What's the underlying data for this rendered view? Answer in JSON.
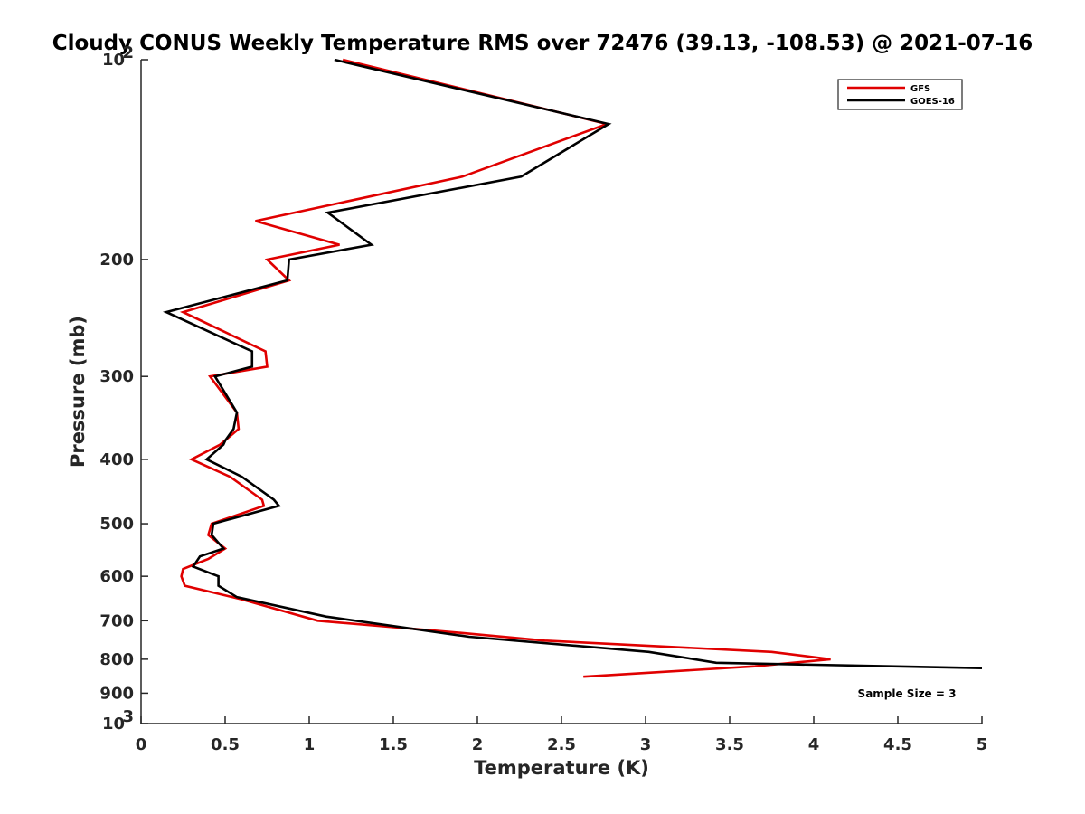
{
  "chart_data": {
    "type": "line",
    "title": "Cloudy CONUS Weekly Temperature RMS over 72476 (39.13, -108.53) @ 2021-07-16",
    "xlabel": "Temperature (K)",
    "ylabel": "Pressure (mb)",
    "xlim": [
      0,
      5
    ],
    "ylim": [
      100,
      1000
    ],
    "y_scale": "log",
    "y_reversed": true,
    "grid": false,
    "legend_position": "top-right",
    "x_ticks": [
      "0",
      "0.5",
      "1",
      "1.5",
      "2",
      "2.5",
      "3",
      "3.5",
      "4",
      "4.5",
      "5"
    ],
    "y_ticks": [
      {
        "value": 100,
        "label": "10",
        "sup": "2"
      },
      {
        "value": 200,
        "label": "200",
        "sup": ""
      },
      {
        "value": 300,
        "label": "300",
        "sup": ""
      },
      {
        "value": 400,
        "label": "400",
        "sup": ""
      },
      {
        "value": 500,
        "label": "500",
        "sup": ""
      },
      {
        "value": 600,
        "label": "600",
        "sup": ""
      },
      {
        "value": 700,
        "label": "700",
        "sup": ""
      },
      {
        "value": 800,
        "label": "800",
        "sup": ""
      },
      {
        "value": 900,
        "label": "900",
        "sup": ""
      },
      {
        "value": 1000,
        "label": "10",
        "sup": "3"
      }
    ],
    "annotation": "Sample Size = 3",
    "series": [
      {
        "name": "GFS",
        "color": "#e00000",
        "points": [
          {
            "x": 1.2,
            "y": 100
          },
          {
            "x": 2.77,
            "y": 125
          },
          {
            "x": 1.91,
            "y": 150
          },
          {
            "x": 0.68,
            "y": 175
          },
          {
            "x": 1.18,
            "y": 190
          },
          {
            "x": 0.75,
            "y": 200
          },
          {
            "x": 0.88,
            "y": 215
          },
          {
            "x": 0.25,
            "y": 240
          },
          {
            "x": 0.74,
            "y": 275
          },
          {
            "x": 0.75,
            "y": 290
          },
          {
            "x": 0.41,
            "y": 300
          },
          {
            "x": 0.57,
            "y": 340
          },
          {
            "x": 0.58,
            "y": 360
          },
          {
            "x": 0.47,
            "y": 380
          },
          {
            "x": 0.3,
            "y": 400
          },
          {
            "x": 0.53,
            "y": 425
          },
          {
            "x": 0.72,
            "y": 460
          },
          {
            "x": 0.73,
            "y": 470
          },
          {
            "x": 0.42,
            "y": 500
          },
          {
            "x": 0.4,
            "y": 520
          },
          {
            "x": 0.5,
            "y": 545
          },
          {
            "x": 0.4,
            "y": 565
          },
          {
            "x": 0.25,
            "y": 585
          },
          {
            "x": 0.24,
            "y": 600
          },
          {
            "x": 0.26,
            "y": 620
          },
          {
            "x": 0.6,
            "y": 650
          },
          {
            "x": 1.05,
            "y": 700
          },
          {
            "x": 1.9,
            "y": 730
          },
          {
            "x": 2.4,
            "y": 750
          },
          {
            "x": 3.75,
            "y": 780
          },
          {
            "x": 4.1,
            "y": 800
          },
          {
            "x": 3.65,
            "y": 820
          },
          {
            "x": 2.63,
            "y": 850
          }
        ]
      },
      {
        "name": "GOES-16",
        "color": "#000000",
        "points": [
          {
            "x": 1.15,
            "y": 100
          },
          {
            "x": 2.78,
            "y": 125
          },
          {
            "x": 2.26,
            "y": 150
          },
          {
            "x": 1.11,
            "y": 170
          },
          {
            "x": 1.37,
            "y": 190
          },
          {
            "x": 0.88,
            "y": 200
          },
          {
            "x": 0.87,
            "y": 215
          },
          {
            "x": 0.15,
            "y": 240
          },
          {
            "x": 0.66,
            "y": 275
          },
          {
            "x": 0.66,
            "y": 290
          },
          {
            "x": 0.44,
            "y": 300
          },
          {
            "x": 0.57,
            "y": 340
          },
          {
            "x": 0.55,
            "y": 360
          },
          {
            "x": 0.5,
            "y": 375
          },
          {
            "x": 0.49,
            "y": 380
          },
          {
            "x": 0.39,
            "y": 400
          },
          {
            "x": 0.6,
            "y": 425
          },
          {
            "x": 0.79,
            "y": 460
          },
          {
            "x": 0.82,
            "y": 470
          },
          {
            "x": 0.43,
            "y": 500
          },
          {
            "x": 0.42,
            "y": 520
          },
          {
            "x": 0.49,
            "y": 545
          },
          {
            "x": 0.35,
            "y": 560
          },
          {
            "x": 0.31,
            "y": 580
          },
          {
            "x": 0.46,
            "y": 600
          },
          {
            "x": 0.46,
            "y": 620
          },
          {
            "x": 0.57,
            "y": 645
          },
          {
            "x": 1.1,
            "y": 690
          },
          {
            "x": 1.95,
            "y": 740
          },
          {
            "x": 3.02,
            "y": 780
          },
          {
            "x": 3.42,
            "y": 810
          },
          {
            "x": 5.0,
            "y": 825
          }
        ]
      }
    ]
  }
}
